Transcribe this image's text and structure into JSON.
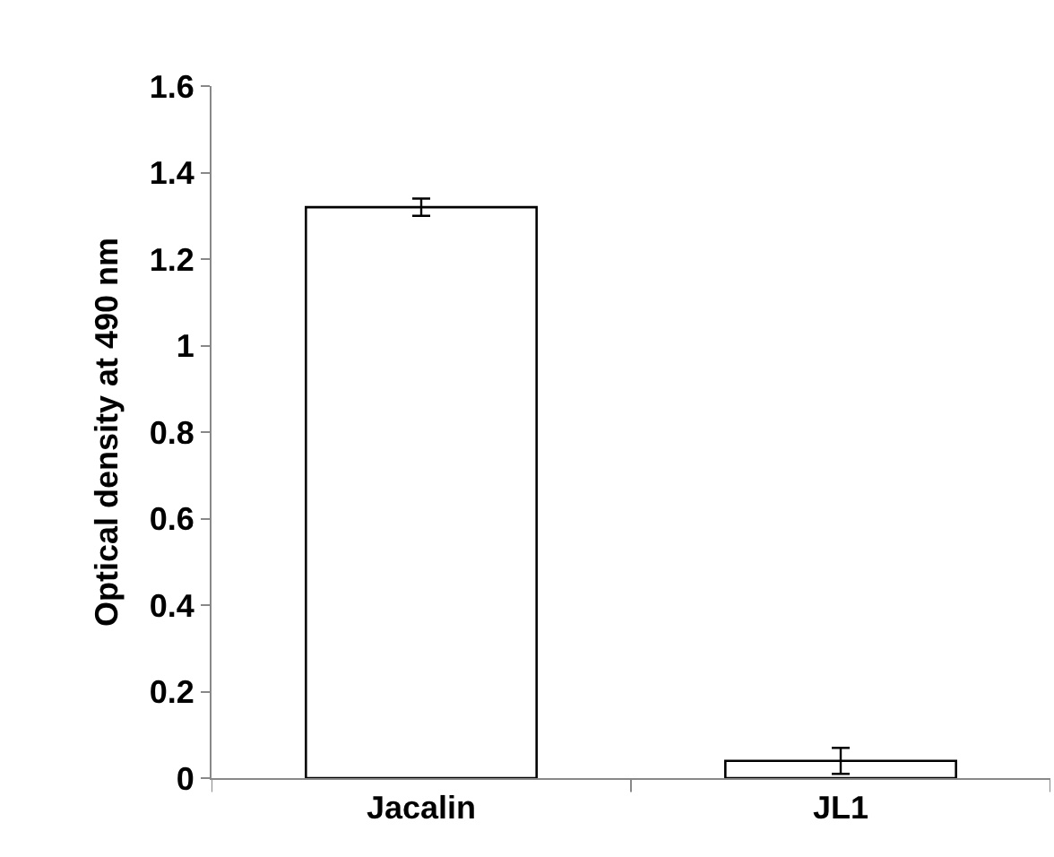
{
  "chart_data": {
    "type": "bar",
    "ylabel": "Optical density at 490 nm",
    "categories": [
      "Jacalin",
      "JL1"
    ],
    "series": [
      {
        "color": "#ffffff",
        "values": [
          1.32,
          0.04
        ],
        "errors": [
          0.02,
          0.03
        ]
      }
    ],
    "ylim": [
      0,
      1.6
    ],
    "yticks": [
      0,
      0.2,
      0.4,
      0.6,
      0.8,
      1,
      1.2,
      1.4,
      1.6
    ],
    "legend": false
  }
}
